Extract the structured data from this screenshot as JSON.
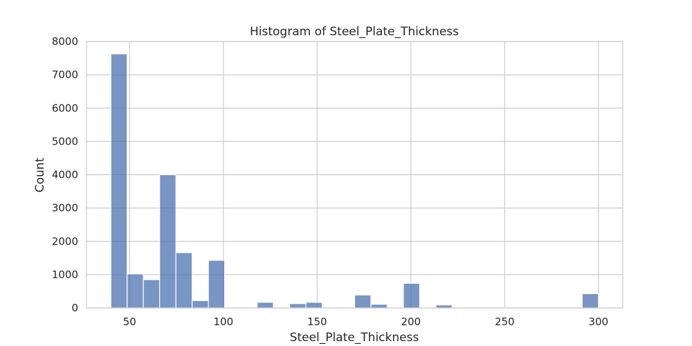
{
  "chart_data": {
    "type": "bar",
    "title": "Histogram of Steel_Plate_Thickness",
    "xlabel": "Steel_Plate_Thickness",
    "ylabel": "Count",
    "xlim": [
      27,
      313
    ],
    "ylim": [
      0,
      8000
    ],
    "xticks": [
      50,
      100,
      150,
      200,
      250,
      300
    ],
    "yticks": [
      0,
      1000,
      2000,
      3000,
      4000,
      5000,
      6000,
      7000,
      8000
    ],
    "grid": true,
    "bin_edges": [
      40,
      48.67,
      57.33,
      66,
      74.67,
      83.33,
      92,
      100.67,
      109.33,
      118,
      126.67,
      135.33,
      144,
      152.67,
      161.33,
      170,
      178.67,
      187.33,
      196,
      204.67,
      213.33,
      222,
      230.67,
      239.33,
      248,
      256.67,
      265.33,
      274,
      282.67,
      291.33,
      300
    ],
    "values": [
      7630,
      1020,
      850,
      4000,
      1660,
      220,
      1430,
      0,
      0,
      170,
      0,
      130,
      170,
      0,
      0,
      390,
      110,
      0,
      740,
      0,
      90,
      0,
      0,
      0,
      0,
      0,
      0,
      0,
      0,
      430
    ],
    "color": "#4c72b0"
  }
}
